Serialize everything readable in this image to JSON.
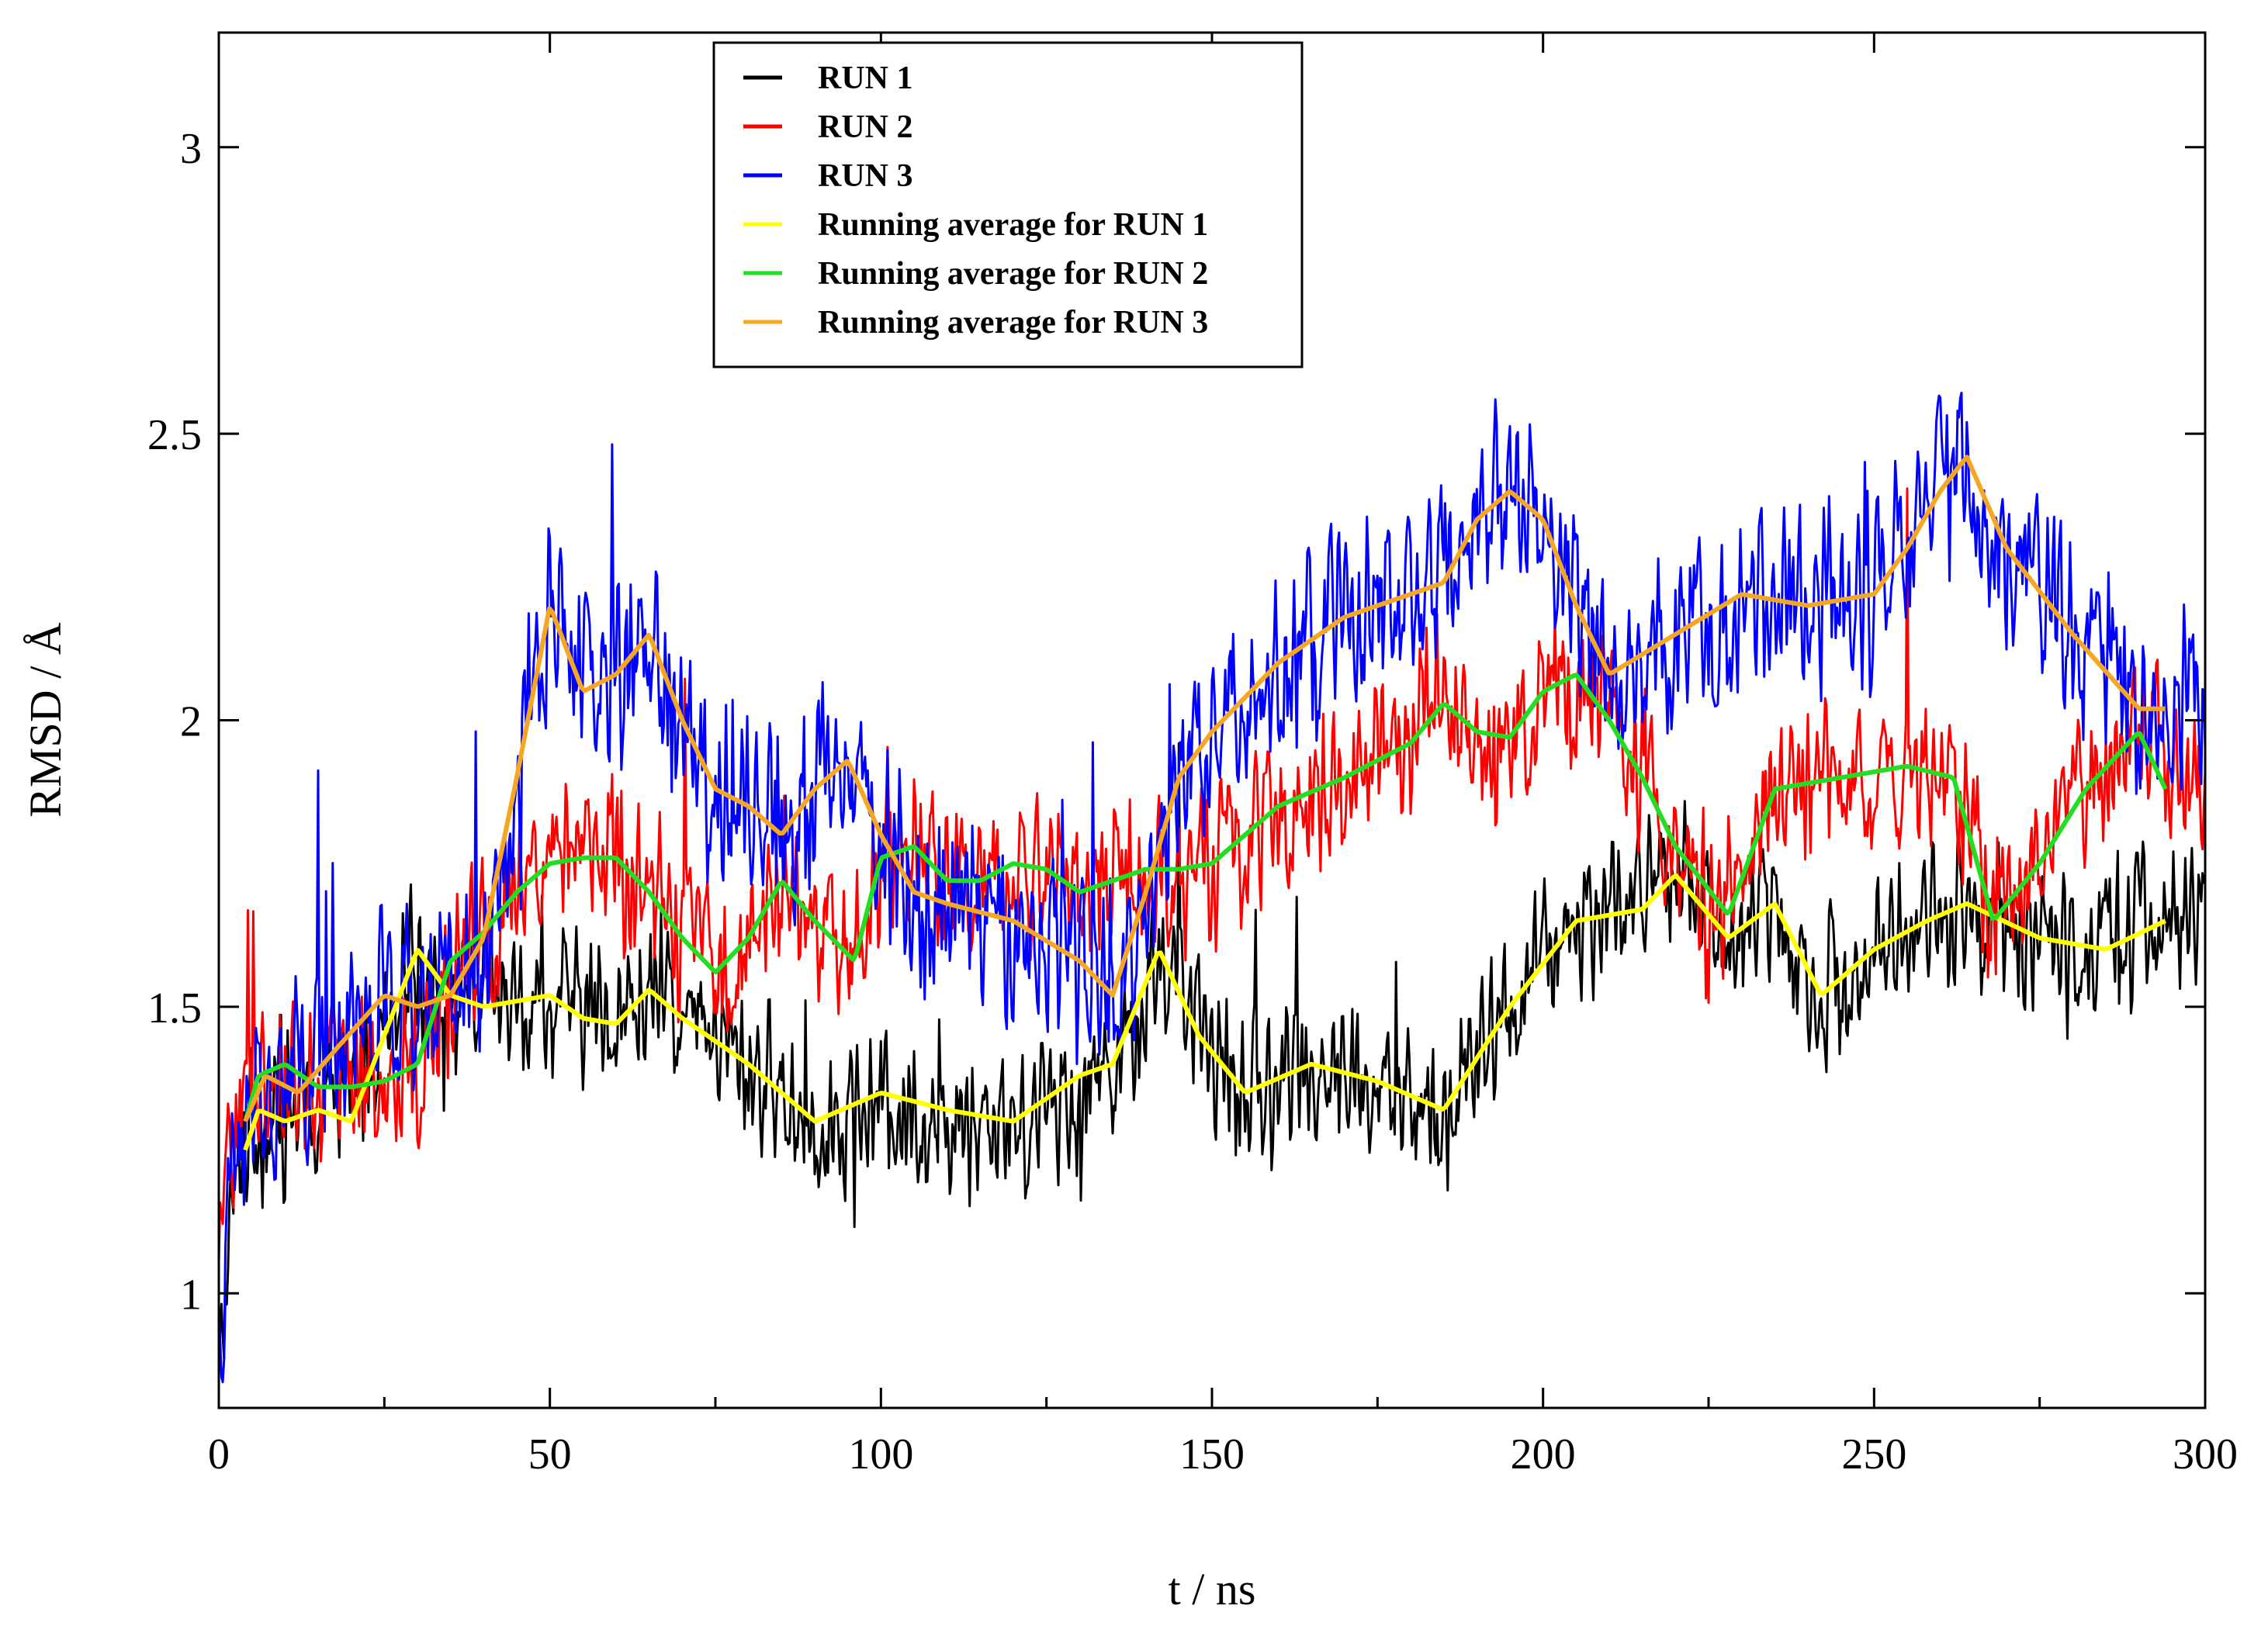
{
  "chart_data": {
    "type": "line",
    "title": "",
    "xlabel": "t / ns",
    "ylabel": "RMSD / Å",
    "xlim": [
      0,
      300
    ],
    "ylim": [
      0.8,
      3.2
    ],
    "grid": false,
    "legend_position": "top-left",
    "x_ticks": [
      0,
      50,
      100,
      150,
      200,
      250,
      300
    ],
    "x_tick_labels": [
      "0",
      "50",
      "100",
      "150",
      "200",
      "250",
      "300"
    ],
    "x_minor_ticks": [
      25,
      75,
      125,
      175,
      225,
      275
    ],
    "y_ticks": [
      1,
      1.5,
      2,
      2.5,
      3
    ],
    "y_tick_labels": [
      "1",
      "1.5",
      "2",
      "2.5",
      "3"
    ],
    "series": [
      {
        "name": "RUN 1",
        "color": "#000000",
        "kind": "raw",
        "x": [
          0,
          1,
          2,
          3,
          5,
          8,
          12,
          18,
          24,
          28,
          32,
          38,
          45,
          52,
          60,
          66,
          72,
          80,
          90,
          100,
          110,
          120,
          130,
          138,
          142,
          148,
          155,
          165,
          175,
          185,
          195,
          205,
          215,
          222,
          228,
          235,
          242,
          250,
          258,
          264,
          270,
          280,
          290,
          300
        ],
        "y": [
          0.82,
          1.0,
          1.15,
          1.25,
          1.3,
          1.3,
          1.32,
          1.3,
          1.45,
          1.6,
          1.55,
          1.5,
          1.5,
          1.5,
          1.48,
          1.52,
          1.45,
          1.4,
          1.3,
          1.33,
          1.3,
          1.3,
          1.35,
          1.45,
          1.6,
          1.45,
          1.35,
          1.4,
          1.35,
          1.3,
          1.5,
          1.65,
          1.7,
          1.72,
          1.62,
          1.68,
          1.52,
          1.6,
          1.65,
          1.68,
          1.63,
          1.6,
          1.65,
          1.65
        ],
        "amp": 0.16
      },
      {
        "name": "RUN 2",
        "color": "#ff0000",
        "kind": "raw",
        "x": [
          0,
          2,
          5,
          10,
          15,
          20,
          25,
          30,
          35,
          40,
          45,
          50,
          55,
          60,
          65,
          70,
          75,
          80,
          85,
          90,
          95,
          100,
          105,
          110,
          115,
          120,
          125,
          130,
          135,
          140,
          145,
          150,
          160,
          170,
          180,
          185,
          190,
          195,
          200,
          205,
          210,
          215,
          220,
          225,
          228,
          235,
          245,
          255,
          262,
          268,
          275,
          282,
          290,
          300
        ],
        "y": [
          1.0,
          1.3,
          1.38,
          1.4,
          1.35,
          1.36,
          1.37,
          1.4,
          1.55,
          1.62,
          1.7,
          1.75,
          1.76,
          1.76,
          1.7,
          1.62,
          1.56,
          1.62,
          1.72,
          1.65,
          1.58,
          1.75,
          1.78,
          1.72,
          1.72,
          1.75,
          1.74,
          1.7,
          1.72,
          1.74,
          1.74,
          1.75,
          1.85,
          1.9,
          1.97,
          2.03,
          1.98,
          1.97,
          2.05,
          2.08,
          2.0,
          1.9,
          1.78,
          1.66,
          1.7,
          1.88,
          1.9,
          1.92,
          1.9,
          1.65,
          1.75,
          1.88,
          1.98,
          1.88
        ],
        "amp": 0.17
      },
      {
        "name": "RUN 3",
        "color": "#0000ff",
        "kind": "raw",
        "x": [
          0,
          2,
          5,
          10,
          15,
          20,
          25,
          30,
          35,
          40,
          45,
          50,
          55,
          60,
          65,
          70,
          75,
          80,
          85,
          90,
          95,
          100,
          105,
          110,
          120,
          130,
          135,
          140,
          145,
          150,
          160,
          170,
          180,
          190,
          195,
          200,
          205,
          210,
          220,
          230,
          240,
          250,
          255,
          260,
          264,
          270,
          280,
          290,
          300
        ],
        "y": [
          0.9,
          1.2,
          1.35,
          1.35,
          1.4,
          1.45,
          1.5,
          1.5,
          1.52,
          1.6,
          1.9,
          2.2,
          2.05,
          2.08,
          2.15,
          2.0,
          1.88,
          1.85,
          1.8,
          1.88,
          1.93,
          1.8,
          1.7,
          1.68,
          1.65,
          1.58,
          1.52,
          1.7,
          1.9,
          1.98,
          2.1,
          2.18,
          2.22,
          2.35,
          2.4,
          2.35,
          2.2,
          2.08,
          2.15,
          2.22,
          2.22,
          2.22,
          2.3,
          2.4,
          2.46,
          2.3,
          2.15,
          2.02,
          2.05
        ],
        "amp": 0.2
      },
      {
        "name": "Running average for RUN 1",
        "color": "#ffff00",
        "kind": "average",
        "x": [
          4,
          6,
          10,
          15,
          20,
          25,
          30,
          35,
          40,
          50,
          55,
          60,
          65,
          70,
          80,
          90,
          100,
          110,
          120,
          130,
          135,
          142,
          148,
          155,
          165,
          175,
          185,
          195,
          205,
          215,
          220,
          228,
          235,
          242,
          250,
          258,
          264,
          275,
          285,
          294
        ],
        "y": [
          1.25,
          1.32,
          1.3,
          1.32,
          1.3,
          1.45,
          1.6,
          1.52,
          1.5,
          1.52,
          1.48,
          1.47,
          1.53,
          1.48,
          1.4,
          1.3,
          1.35,
          1.32,
          1.3,
          1.38,
          1.4,
          1.6,
          1.45,
          1.35,
          1.4,
          1.37,
          1.32,
          1.5,
          1.65,
          1.67,
          1.73,
          1.62,
          1.68,
          1.52,
          1.6,
          1.65,
          1.68,
          1.62,
          1.6,
          1.65
        ]
      },
      {
        "name": "Running average for RUN 2",
        "color": "#22dd22",
        "kind": "average",
        "x": [
          4,
          6,
          10,
          15,
          20,
          25,
          30,
          35,
          40,
          45,
          50,
          55,
          60,
          65,
          70,
          75,
          80,
          85,
          90,
          96,
          100,
          105,
          110,
          115,
          120,
          125,
          130,
          135,
          140,
          145,
          150,
          160,
          170,
          180,
          185,
          190,
          195,
          200,
          205,
          210,
          215,
          220,
          228,
          235,
          245,
          255,
          262,
          268,
          275,
          282,
          290,
          294
        ],
        "y": [
          1.3,
          1.38,
          1.4,
          1.36,
          1.36,
          1.37,
          1.4,
          1.58,
          1.63,
          1.7,
          1.75,
          1.76,
          1.76,
          1.7,
          1.62,
          1.56,
          1.62,
          1.72,
          1.65,
          1.58,
          1.76,
          1.78,
          1.72,
          1.72,
          1.75,
          1.74,
          1.7,
          1.72,
          1.74,
          1.74,
          1.75,
          1.85,
          1.9,
          1.96,
          2.03,
          1.98,
          1.97,
          2.05,
          2.08,
          2.0,
          1.9,
          1.78,
          1.66,
          1.88,
          1.9,
          1.92,
          1.9,
          1.65,
          1.75,
          1.88,
          1.98,
          1.88
        ]
      },
      {
        "name": "Running average for RUN 3",
        "color": "#f5a623",
        "kind": "average",
        "x": [
          4,
          7,
          12,
          18,
          25,
          30,
          35,
          40,
          45,
          50,
          55,
          60,
          65,
          70,
          75,
          80,
          85,
          90,
          95,
          100,
          105,
          110,
          120,
          130,
          135,
          140,
          145,
          150,
          160,
          170,
          180,
          185,
          190,
          195,
          200,
          205,
          210,
          220,
          230,
          240,
          250,
          255,
          260,
          264,
          270,
          280,
          290,
          294
        ],
        "y": [
          1.3,
          1.38,
          1.35,
          1.43,
          1.52,
          1.5,
          1.52,
          1.62,
          1.9,
          2.2,
          2.05,
          2.08,
          2.15,
          2.0,
          1.88,
          1.85,
          1.8,
          1.88,
          1.93,
          1.8,
          1.7,
          1.68,
          1.65,
          1.58,
          1.52,
          1.7,
          1.9,
          1.98,
          2.1,
          2.18,
          2.22,
          2.24,
          2.35,
          2.4,
          2.35,
          2.2,
          2.08,
          2.15,
          2.22,
          2.2,
          2.22,
          2.3,
          2.4,
          2.46,
          2.3,
          2.15,
          2.02,
          2.02
        ]
      }
    ]
  }
}
